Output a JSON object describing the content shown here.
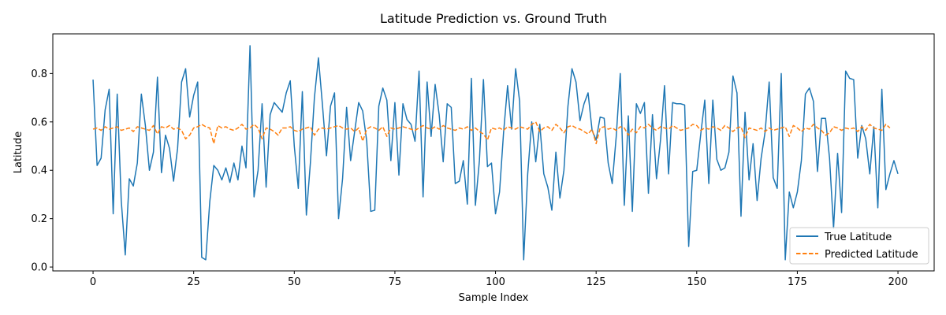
{
  "chart_data": {
    "type": "line",
    "title": "Latitude Prediction vs. Ground Truth",
    "xlabel": "Sample Index",
    "ylabel": "Latitude",
    "xlim": [
      -10,
      209
    ],
    "ylim": [
      -0.016,
      0.964
    ],
    "xticks": [
      0,
      25,
      50,
      75,
      100,
      125,
      150,
      175,
      200
    ],
    "yticks": [
      0.0,
      0.2,
      0.4,
      0.6,
      0.8
    ],
    "grid": false,
    "legend_position": "lower-right",
    "series": [
      {
        "name": "True Latitude",
        "color": "#1f77b4",
        "style": "solid",
        "values": [
          0.775,
          0.42,
          0.45,
          0.65,
          0.735,
          0.22,
          0.715,
          0.275,
          0.05,
          0.365,
          0.335,
          0.43,
          0.715,
          0.585,
          0.4,
          0.475,
          0.785,
          0.39,
          0.545,
          0.49,
          0.355,
          0.49,
          0.765,
          0.82,
          0.62,
          0.71,
          0.765,
          0.04,
          0.03,
          0.27,
          0.42,
          0.4,
          0.36,
          0.41,
          0.35,
          0.43,
          0.36,
          0.5,
          0.41,
          0.915,
          0.29,
          0.4,
          0.675,
          0.33,
          0.63,
          0.68,
          0.66,
          0.64,
          0.72,
          0.77,
          0.5,
          0.325,
          0.725,
          0.215,
          0.43,
          0.7,
          0.865,
          0.67,
          0.46,
          0.665,
          0.72,
          0.2,
          0.365,
          0.66,
          0.44,
          0.56,
          0.68,
          0.645,
          0.52,
          0.23,
          0.235,
          0.665,
          0.74,
          0.69,
          0.44,
          0.68,
          0.38,
          0.675,
          0.61,
          0.59,
          0.52,
          0.81,
          0.29,
          0.765,
          0.54,
          0.755,
          0.63,
          0.435,
          0.675,
          0.66,
          0.345,
          0.355,
          0.44,
          0.26,
          0.78,
          0.255,
          0.44,
          0.775,
          0.415,
          0.43,
          0.22,
          0.31,
          0.555,
          0.75,
          0.57,
          0.82,
          0.685,
          0.03,
          0.385,
          0.6,
          0.435,
          0.59,
          0.385,
          0.33,
          0.235,
          0.475,
          0.285,
          0.4,
          0.665,
          0.82,
          0.765,
          0.605,
          0.675,
          0.72,
          0.565,
          0.525,
          0.62,
          0.615,
          0.43,
          0.345,
          0.54,
          0.8,
          0.255,
          0.625,
          0.23,
          0.675,
          0.635,
          0.68,
          0.305,
          0.63,
          0.365,
          0.525,
          0.75,
          0.385,
          0.68,
          0.675,
          0.675,
          0.67,
          0.085,
          0.395,
          0.4,
          0.55,
          0.69,
          0.345,
          0.69,
          0.445,
          0.4,
          0.41,
          0.475,
          0.79,
          0.72,
          0.21,
          0.64,
          0.36,
          0.51,
          0.275,
          0.45,
          0.56,
          0.765,
          0.37,
          0.325,
          0.8,
          0.03,
          0.31,
          0.245,
          0.31,
          0.44,
          0.715,
          0.74,
          0.685,
          0.395,
          0.615,
          0.615,
          0.45,
          0.16,
          0.47,
          0.225,
          0.81,
          0.78,
          0.775,
          0.45,
          0.585,
          0.53,
          0.385,
          0.58,
          0.245,
          0.735,
          0.32,
          0.385,
          0.44,
          0.385
        ]
      },
      {
        "name": "Predicted Latitude",
        "color": "#ff7f0e",
        "style": "dashed",
        "values": [
          0.57,
          0.575,
          0.565,
          0.58,
          0.57,
          0.575,
          0.58,
          0.565,
          0.57,
          0.575,
          0.56,
          0.58,
          0.575,
          0.57,
          0.565,
          0.585,
          0.55,
          0.58,
          0.575,
          0.585,
          0.57,
          0.575,
          0.565,
          0.53,
          0.545,
          0.575,
          0.58,
          0.59,
          0.58,
          0.575,
          0.51,
          0.585,
          0.575,
          0.58,
          0.57,
          0.565,
          0.575,
          0.59,
          0.57,
          0.575,
          0.59,
          0.575,
          0.53,
          0.575,
          0.57,
          0.56,
          0.545,
          0.575,
          0.575,
          0.58,
          0.565,
          0.56,
          0.57,
          0.575,
          0.58,
          0.545,
          0.57,
          0.575,
          0.57,
          0.575,
          0.58,
          0.585,
          0.575,
          0.57,
          0.575,
          0.56,
          0.575,
          0.52,
          0.57,
          0.58,
          0.575,
          0.565,
          0.58,
          0.54,
          0.575,
          0.57,
          0.575,
          0.58,
          0.575,
          0.57,
          0.565,
          0.575,
          0.585,
          0.575,
          0.57,
          0.58,
          0.57,
          0.585,
          0.575,
          0.57,
          0.565,
          0.575,
          0.57,
          0.58,
          0.565,
          0.575,
          0.56,
          0.55,
          0.525,
          0.575,
          0.57,
          0.575,
          0.565,
          0.58,
          0.575,
          0.57,
          0.58,
          0.575,
          0.57,
          0.59,
          0.6,
          0.56,
          0.575,
          0.58,
          0.565,
          0.59,
          0.575,
          0.555,
          0.58,
          0.585,
          0.575,
          0.57,
          0.56,
          0.55,
          0.57,
          0.51,
          0.575,
          0.58,
          0.57,
          0.575,
          0.565,
          0.58,
          0.575,
          0.545,
          0.57,
          0.555,
          0.58,
          0.575,
          0.59,
          0.575,
          0.565,
          0.58,
          0.575,
          0.57,
          0.585,
          0.575,
          0.565,
          0.57,
          0.575,
          0.59,
          0.585,
          0.565,
          0.575,
          0.57,
          0.58,
          0.575,
          0.565,
          0.585,
          0.575,
          0.56,
          0.575,
          0.58,
          0.535,
          0.575,
          0.57,
          0.565,
          0.575,
          0.56,
          0.575,
          0.565,
          0.57,
          0.575,
          0.58,
          0.54,
          0.585,
          0.575,
          0.56,
          0.575,
          0.57,
          0.59,
          0.575,
          0.565,
          0.545,
          0.555,
          0.58,
          0.575,
          0.565,
          0.575,
          0.57,
          0.575,
          0.56,
          0.58,
          0.565,
          0.59,
          0.575,
          0.57,
          0.565,
          0.59,
          0.575
        ]
      }
    ]
  }
}
